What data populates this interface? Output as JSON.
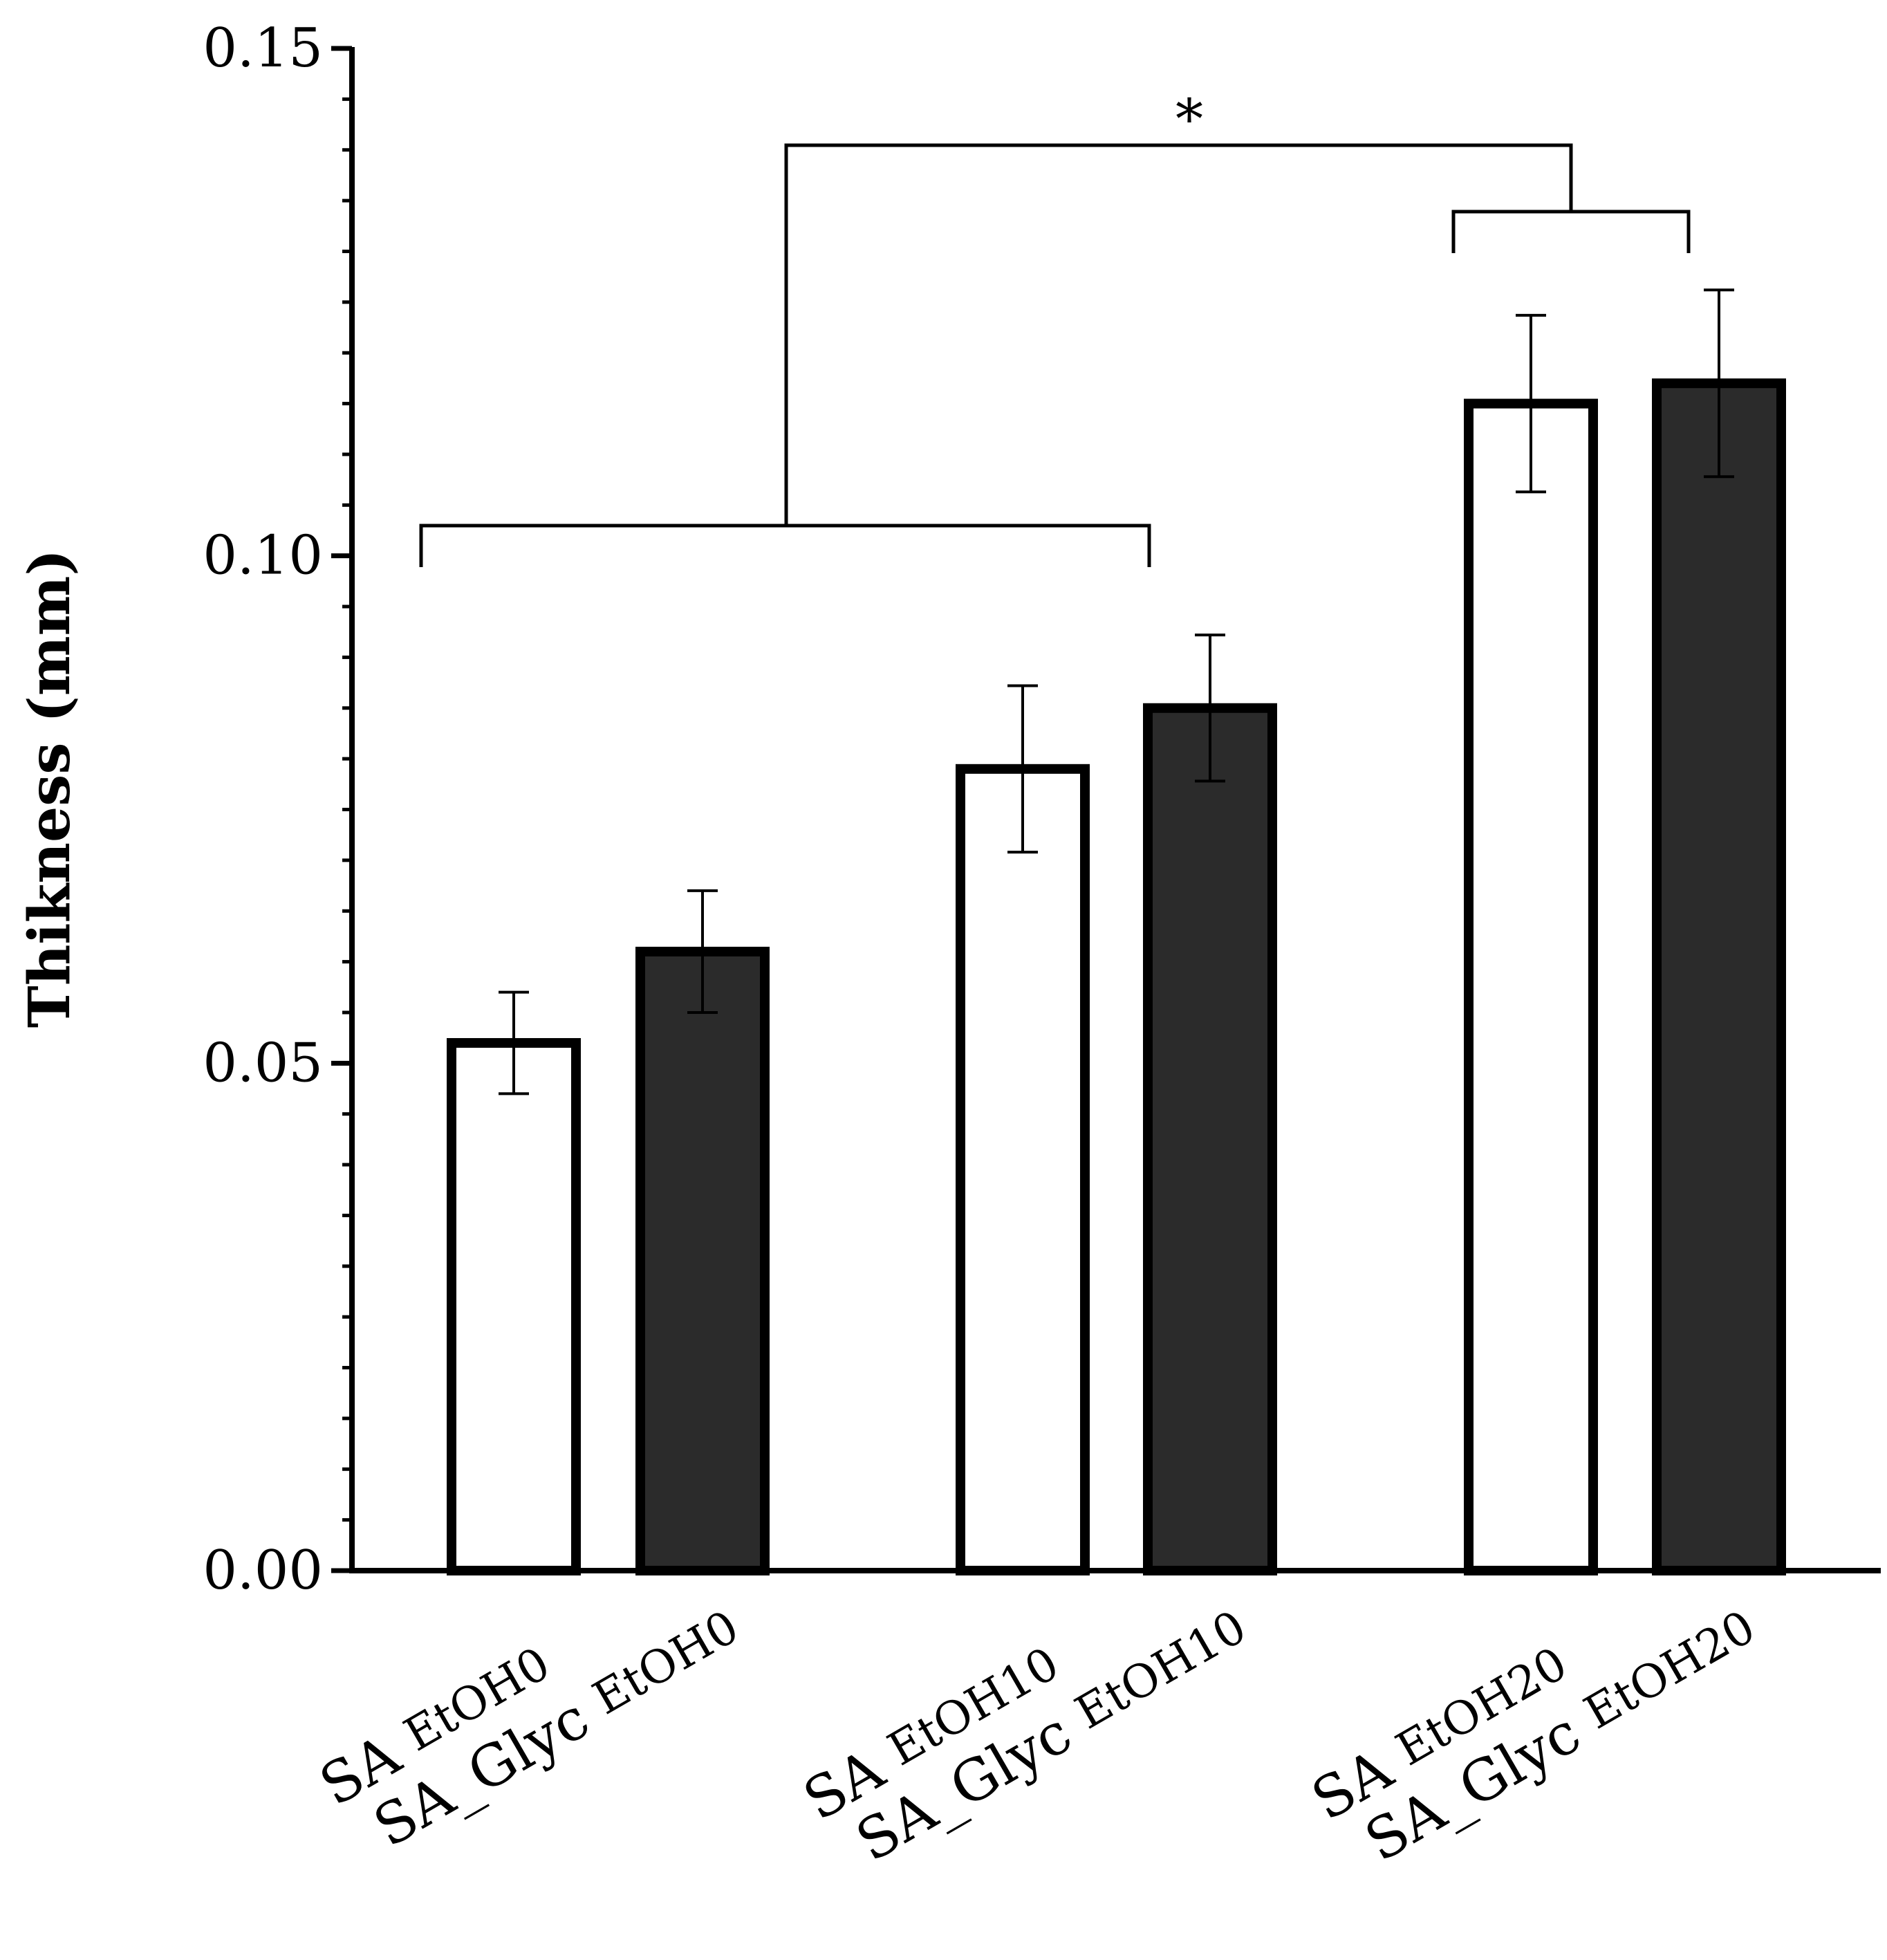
{
  "chart_data": {
    "type": "bar",
    "title": "",
    "xlabel": "",
    "ylabel": "Thikness (mm)",
    "ylim": [
      0,
      0.15
    ],
    "grid": false,
    "legend": "none",
    "y_ticks": [
      "0.00",
      "0.05",
      "0.10",
      "0.15"
    ],
    "categories": [
      {
        "main": "SA ",
        "sub": "EtOH0"
      },
      {
        "main": "SA_Glyc ",
        "sub": "EtOH0"
      },
      {
        "main": "SA ",
        "sub": "EtOH10"
      },
      {
        "main": "SA_Glyc ",
        "sub": "EtOH10"
      },
      {
        "main": "SA ",
        "sub": "EtOH20"
      },
      {
        "main": "SA_Glyc ",
        "sub": "EtOH20"
      }
    ],
    "values": [
      0.052,
      0.061,
      0.079,
      0.085,
      0.115,
      0.117
    ],
    "errors": [
      0.005,
      0.006,
      0.0082,
      0.0072,
      0.0087,
      0.0092
    ],
    "fills": [
      "#ffffff",
      "#2b2b2b",
      "#ffffff",
      "#2b2b2b",
      "#ffffff",
      "#2b2b2b"
    ],
    "significance": {
      "label": "*",
      "left_group": [
        "SA EtOH0",
        "SA_Glyc EtOH0",
        "SA EtOH10",
        "SA_Glyc EtOH10"
      ],
      "right_group": [
        "SA EtOH20",
        "SA_Glyc EtOH20"
      ]
    }
  }
}
